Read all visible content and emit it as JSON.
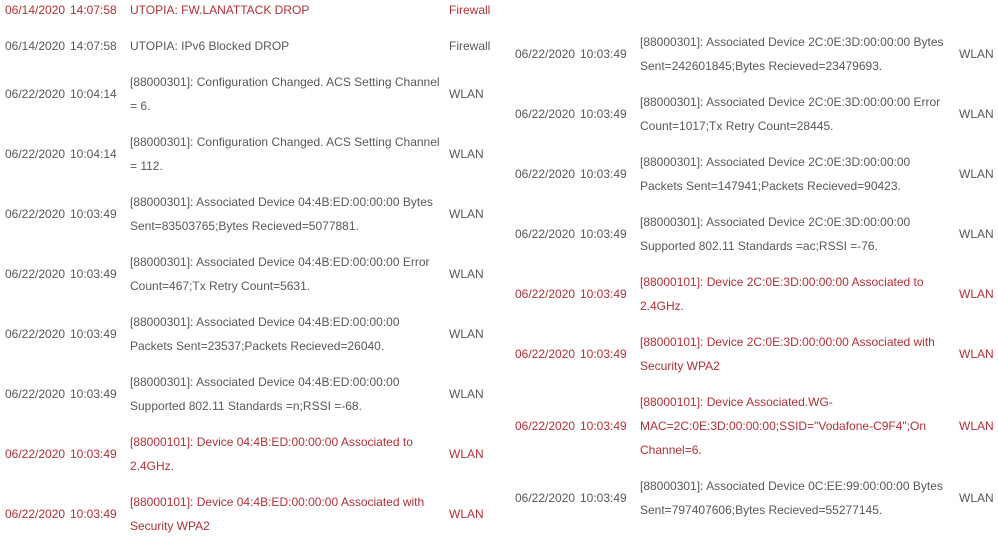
{
  "colors": {
    "normal_text": "#58585a",
    "alert_text": "#b1303a",
    "background": "#ffffff"
  },
  "log": {
    "categories_seen": [
      "Firewall",
      "WLAN"
    ],
    "left_rows": [
      {
        "date": "06/14/2020",
        "time": "14:07:58",
        "message": "UTOPIA: FW.LANATTACK DROP",
        "category": "Firewall",
        "highlight": true
      },
      {
        "date": "06/14/2020",
        "time": "14:07:58",
        "message": "UTOPIA: IPv6 Blocked DROP",
        "category": "Firewall",
        "highlight": false
      },
      {
        "date": "06/22/2020",
        "time": "10:04:14",
        "message": "[88000301]: Configuration Changed. ACS Setting Channel = 6.",
        "category": "WLAN",
        "highlight": false
      },
      {
        "date": "06/22/2020",
        "time": "10:04:14",
        "message": "[88000301]: Configuration Changed. ACS Setting Channel = 112.",
        "category": "WLAN",
        "highlight": false
      },
      {
        "date": "06/22/2020",
        "time": "10:03:49",
        "message": "[88000301]: Associated Device 04:4B:ED:00:00:00 Bytes Sent=83503765;Bytes Recieved=5077881.",
        "category": "WLAN",
        "highlight": false
      },
      {
        "date": "06/22/2020",
        "time": "10:03:49",
        "message": "[88000301]: Associated Device 04:4B:ED:00:00:00 Error Count=467;Tx Retry Count=5631.",
        "category": "WLAN",
        "highlight": false
      },
      {
        "date": "06/22/2020",
        "time": "10:03:49",
        "message": "[88000301]: Associated Device 04:4B:ED:00:00:00 Packets Sent=23537;Packets Recieved=26040.",
        "category": "WLAN",
        "highlight": false
      },
      {
        "date": "06/22/2020",
        "time": "10:03:49",
        "message": "[88000301]: Associated Device 04:4B:ED:00:00:00 Supported 802.11 Standards =n;RSSI =-68.",
        "category": "WLAN",
        "highlight": false
      },
      {
        "date": "06/22/2020",
        "time": "10:03:49",
        "message": "[88000101]: Device 04:4B:ED:00:00:00 Associated to 2.4GHz.",
        "category": "WLAN",
        "highlight": true
      },
      {
        "date": "06/22/2020",
        "time": "10:03:49",
        "message": "[88000101]: Device 04:4B:ED:00:00:00 Associated with Security WPA2",
        "category": "WLAN",
        "highlight": true
      }
    ],
    "right_rows": [
      {
        "date": "06/22/2020",
        "time": "10:03:49",
        "message": "[88000301]: Associated Device 2C:0E:3D:00:00:00 Bytes Sent=242601845;Bytes Recieved=23479693.",
        "category": "WLAN",
        "highlight": false
      },
      {
        "date": "06/22/2020",
        "time": "10:03:49",
        "message": "[88000301]: Associated Device 2C:0E:3D:00:00:00 Error Count=1017;Tx Retry Count=28445.",
        "category": "WLAN",
        "highlight": false
      },
      {
        "date": "06/22/2020",
        "time": "10:03:49",
        "message": "[88000301]: Associated Device 2C:0E:3D:00:00:00 Packets Sent=147941;Packets Recieved=90423.",
        "category": "WLAN",
        "highlight": false
      },
      {
        "date": "06/22/2020",
        "time": "10:03:49",
        "message": "[88000301]: Associated Device 2C:0E:3D:00:00:00 Supported 802.11 Standards =ac;RSSI =-76.",
        "category": "WLAN",
        "highlight": false
      },
      {
        "date": "06/22/2020",
        "time": "10:03:49",
        "message": "[88000101]: Device 2C:0E:3D:00:00:00 Associated to 2.4GHz.",
        "category": "WLAN",
        "highlight": true
      },
      {
        "date": "06/22/2020",
        "time": "10:03:49",
        "message": "[88000101]: Device 2C:0E:3D:00:00:00 Associated with Security WPA2",
        "category": "WLAN",
        "highlight": true
      },
      {
        "date": "06/22/2020",
        "time": "10:03:49",
        "message": "[88000101]: Device Associated.WG-MAC=2C:0E:3D:00:00:00;SSID=\"Vodafone-C9F4\";On Channel=6.",
        "category": "WLAN",
        "highlight": true
      },
      {
        "date": "06/22/2020",
        "time": "10:03:49",
        "message": "[88000301]: Associated Device 0C:EE:99:00:00:00 Bytes Sent=797407606;Bytes Recieved=55277145.",
        "category": "WLAN",
        "highlight": false
      }
    ]
  }
}
